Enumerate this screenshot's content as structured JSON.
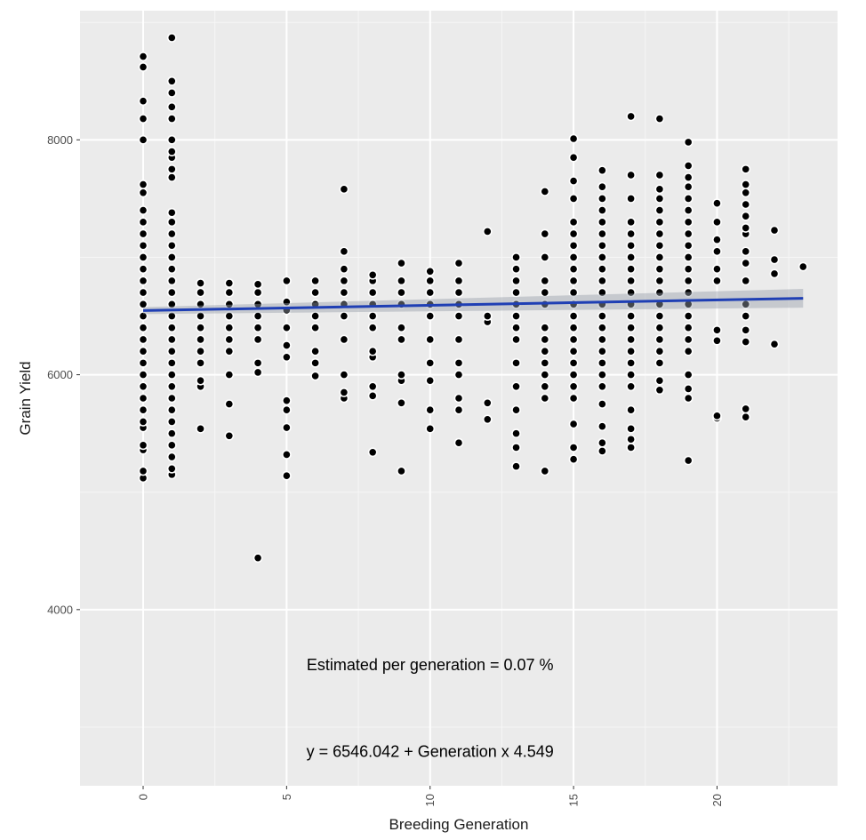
{
  "chart_data": {
    "type": "scatter",
    "xlabel": "Breeding Generation",
    "ylabel": "Grain Yield",
    "xlim": [
      -2.2,
      24.2
    ],
    "ylim": [
      2500,
      9100
    ],
    "x_ticks": [
      0,
      5,
      10,
      15,
      20
    ],
    "y_ticks": [
      4000,
      6000,
      8000
    ],
    "grid": true,
    "background": "#ebebeb",
    "point_color": "#000000",
    "line_color": "#1f3fb4",
    "regression": {
      "intercept": 6546.042,
      "slope": 4.549,
      "x_range": [
        0,
        23
      ]
    },
    "annotations": [
      {
        "text": "Estimated per generation =  0.07 %",
        "x": 10,
        "y": 3530
      },
      {
        "text": "y = 6546.042 + Generation x 4.549",
        "x": 10,
        "y": 2790
      }
    ],
    "series": [
      {
        "generation": 0,
        "y": [
          5120,
          5180,
          5360,
          5400,
          5550,
          5600,
          5700,
          5800,
          5900,
          6000,
          6100,
          6200,
          6300,
          6400,
          6500,
          6600,
          6700,
          6800,
          6900,
          7000,
          7100,
          7200,
          7300,
          7400,
          7550,
          7620,
          8000,
          8180,
          8330,
          8620,
          8710
        ]
      },
      {
        "generation": 1,
        "y": [
          5150,
          5200,
          5300,
          5400,
          5500,
          5600,
          5700,
          5800,
          5900,
          6000,
          6100,
          6200,
          6300,
          6400,
          6500,
          6600,
          6700,
          6800,
          6900,
          7000,
          7100,
          7200,
          7300,
          7380,
          7680,
          7750,
          7850,
          7900,
          8000,
          8180,
          8280,
          8400,
          8500,
          8870
        ]
      },
      {
        "generation": 2,
        "y": [
          5540,
          5900,
          5950,
          6100,
          6200,
          6300,
          6400,
          6500,
          6600,
          6700,
          6780
        ]
      },
      {
        "generation": 3,
        "y": [
          5480,
          5750,
          6000,
          6200,
          6300,
          6400,
          6500,
          6600,
          6700,
          6780
        ]
      },
      {
        "generation": 4,
        "y": [
          4440,
          6020,
          6100,
          6300,
          6400,
          6500,
          6600,
          6700,
          6770
        ]
      },
      {
        "generation": 5,
        "y": [
          5140,
          5320,
          5550,
          5700,
          5780,
          6150,
          6250,
          6400,
          6550,
          6620,
          6800
        ]
      },
      {
        "generation": 6,
        "y": [
          5990,
          6100,
          6200,
          6400,
          6500,
          6600,
          6700,
          6800
        ]
      },
      {
        "generation": 7,
        "y": [
          5800,
          5850,
          6000,
          6300,
          6500,
          6600,
          6700,
          6800,
          6900,
          7050,
          7580
        ]
      },
      {
        "generation": 8,
        "y": [
          5340,
          5820,
          5900,
          6150,
          6200,
          6400,
          6500,
          6600,
          6700,
          6800,
          6850
        ]
      },
      {
        "generation": 9,
        "y": [
          5180,
          5760,
          5950,
          6000,
          6300,
          6400,
          6600,
          6700,
          6800,
          6950
        ]
      },
      {
        "generation": 10,
        "y": [
          5540,
          5700,
          5950,
          6100,
          6300,
          6500,
          6600,
          6700,
          6800,
          6880
        ]
      },
      {
        "generation": 11,
        "y": [
          5420,
          5700,
          5800,
          6000,
          6100,
          6300,
          6500,
          6600,
          6700,
          6800,
          6950
        ]
      },
      {
        "generation": 12,
        "y": [
          5620,
          5760,
          6450,
          6500,
          7220
        ]
      },
      {
        "generation": 13,
        "y": [
          5220,
          5380,
          5500,
          5700,
          5900,
          6100,
          6300,
          6400,
          6500,
          6600,
          6700,
          6800,
          6900,
          7000
        ]
      },
      {
        "generation": 14,
        "y": [
          5180,
          5800,
          5900,
          6000,
          6100,
          6200,
          6300,
          6400,
          6600,
          6700,
          6800,
          7000,
          7200,
          7560
        ]
      },
      {
        "generation": 15,
        "y": [
          5280,
          5380,
          5580,
          5800,
          5900,
          6000,
          6100,
          6200,
          6300,
          6400,
          6500,
          6600,
          6700,
          6800,
          6900,
          7000,
          7100,
          7200,
          7300,
          7500,
          7650,
          7850,
          8010
        ]
      },
      {
        "generation": 16,
        "y": [
          5350,
          5420,
          5560,
          5750,
          5900,
          6000,
          6100,
          6200,
          6300,
          6400,
          6500,
          6600,
          6700,
          6800,
          6900,
          7000,
          7100,
          7200,
          7300,
          7400,
          7500,
          7600,
          7740
        ]
      },
      {
        "generation": 17,
        "y": [
          5380,
          5450,
          5540,
          5700,
          5900,
          6000,
          6100,
          6200,
          6300,
          6400,
          6500,
          6600,
          6700,
          6800,
          6900,
          7000,
          7100,
          7200,
          7300,
          7500,
          7700,
          8200
        ]
      },
      {
        "generation": 18,
        "y": [
          5870,
          5950,
          6100,
          6200,
          6300,
          6400,
          6500,
          6600,
          6700,
          6800,
          6900,
          7000,
          7100,
          7200,
          7300,
          7400,
          7500,
          7580,
          7700,
          8180
        ]
      },
      {
        "generation": 19,
        "y": [
          5270,
          5800,
          5880,
          6000,
          6200,
          6300,
          6400,
          6500,
          6600,
          6700,
          6800,
          6900,
          7000,
          7100,
          7200,
          7300,
          7400,
          7500,
          7600,
          7680,
          7780,
          7980
        ]
      },
      {
        "generation": 20,
        "y": [
          5630,
          5650,
          6290,
          6380,
          6800,
          6900,
          7050,
          7150,
          7300,
          7460
        ]
      },
      {
        "generation": 21,
        "y": [
          5640,
          5710,
          6280,
          6380,
          6500,
          6600,
          6800,
          6950,
          7050,
          7200,
          7250,
          7350,
          7450,
          7550,
          7620,
          7750
        ]
      },
      {
        "generation": 22,
        "y": [
          6260,
          6860,
          6980,
          7230
        ]
      },
      {
        "generation": 23,
        "y": [
          6920
        ]
      }
    ]
  }
}
